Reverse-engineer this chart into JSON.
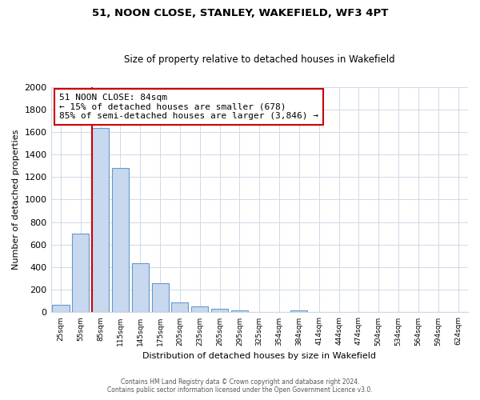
{
  "title": "51, NOON CLOSE, STANLEY, WAKEFIELD, WF3 4PT",
  "subtitle": "Size of property relative to detached houses in Wakefield",
  "xlabel": "Distribution of detached houses by size in Wakefield",
  "ylabel": "Number of detached properties",
  "bar_labels": [
    "25sqm",
    "55sqm",
    "85sqm",
    "115sqm",
    "145sqm",
    "175sqm",
    "205sqm",
    "235sqm",
    "265sqm",
    "295sqm",
    "325sqm",
    "354sqm",
    "384sqm",
    "414sqm",
    "444sqm",
    "474sqm",
    "504sqm",
    "534sqm",
    "564sqm",
    "594sqm",
    "624sqm"
  ],
  "bar_values": [
    65,
    695,
    1635,
    1280,
    435,
    255,
    90,
    50,
    30,
    20,
    0,
    0,
    15,
    0,
    0,
    0,
    0,
    0,
    0,
    0,
    0
  ],
  "bar_color": "#c8d8ee",
  "bar_edge_color": "#6699cc",
  "marker_line_color": "#cc0000",
  "annotation_text": "51 NOON CLOSE: 84sqm\n← 15% of detached houses are smaller (678)\n85% of semi-detached houses are larger (3,846) →",
  "annotation_box_color": "#ffffff",
  "annotation_box_edge_color": "#cc0000",
  "ylim": [
    0,
    2000
  ],
  "yticks": [
    0,
    200,
    400,
    600,
    800,
    1000,
    1200,
    1400,
    1600,
    1800,
    2000
  ],
  "background_color": "#ffffff",
  "grid_color": "#d0d8e8",
  "footer_line1": "Contains HM Land Registry data © Crown copyright and database right 2024.",
  "footer_line2": "Contains public sector information licensed under the Open Government Licence v3.0."
}
